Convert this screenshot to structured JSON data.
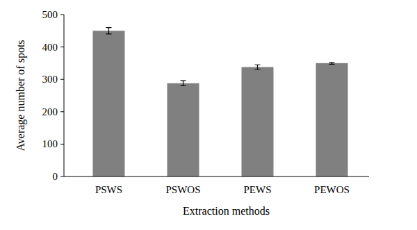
{
  "chart_data": {
    "type": "bar",
    "x_label": "Extraction methods",
    "y_label": "Average number of spots",
    "categories": [
      "PSWS",
      "PSWOS",
      "PEWS",
      "PEWOS"
    ],
    "values": [
      450,
      288,
      338,
      350
    ],
    "errors": [
      10,
      8,
      7,
      3
    ],
    "color": "#808080",
    "ylim": [
      0,
      500
    ],
    "yticks": [
      0,
      100,
      200,
      300,
      400,
      500
    ],
    "grid": false
  }
}
